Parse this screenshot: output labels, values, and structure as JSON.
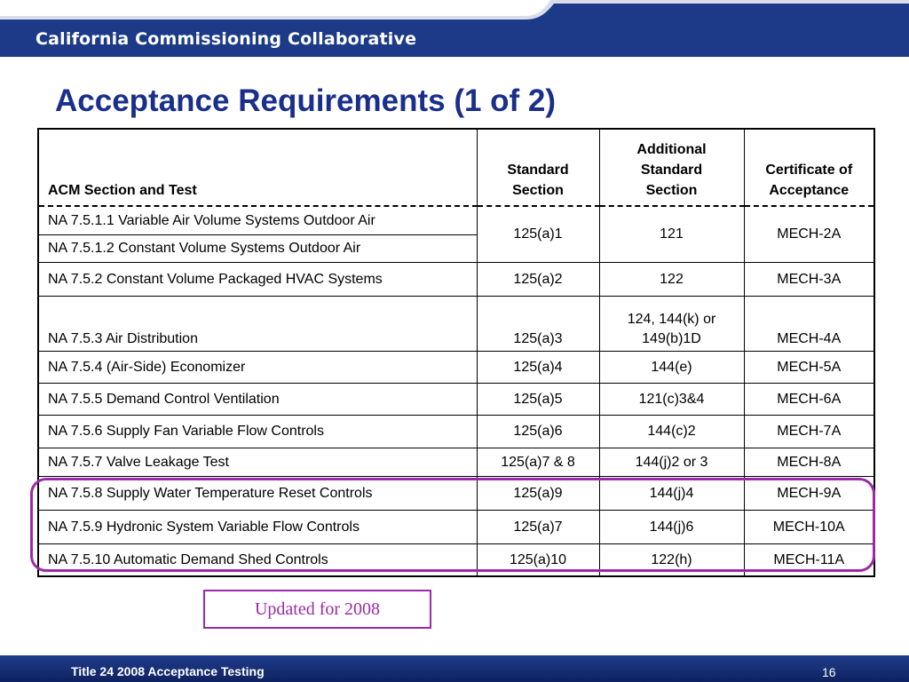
{
  "header": {
    "org_name": "California Commissioning Collaborative",
    "colors": {
      "band": "#1c3a87",
      "stripe": "#d8dde9"
    }
  },
  "title": "Acceptance Requirements (1 of 2)",
  "table": {
    "headers": [
      "ACM Section and Test",
      "Standard\nSection",
      "Additional\nStandard\nSection",
      "Certificate of\nAcceptance"
    ],
    "rows": [
      {
        "test": "NA 7.5.1.1 Variable Air Volume Systems Outdoor Air",
        "standard": "125(a)1",
        "additional": "121",
        "certificate": "MECH-2A"
      },
      {
        "test": "NA 7.5.1.2 Constant Volume Systems Outdoor Air"
      },
      {
        "test": "NA 7.5.2 Constant Volume Packaged HVAC Systems",
        "standard": "125(a)2",
        "additional": "122",
        "certificate": "MECH-3A"
      },
      {
        "test": "NA 7.5.3 Air Distribution",
        "standard": "125(a)3",
        "additional": "124,  144(k) or 149(b)1D",
        "certificate": "MECH-4A"
      },
      {
        "test": "NA 7.5.4 (Air-Side) Economizer",
        "standard": "125(a)4",
        "additional": "144(e)",
        "certificate": "MECH-5A"
      },
      {
        "test": "NA 7.5.5 Demand Control Ventilation",
        "standard": "125(a)5",
        "additional": "121(c)3&4",
        "certificate": "MECH-6A"
      },
      {
        "test": "NA 7.5.6 Supply Fan Variable Flow Controls",
        "standard": "125(a)6",
        "additional": "144(c)2",
        "certificate": "MECH-7A"
      },
      {
        "test": "NA 7.5.7 Valve Leakage Test",
        "standard": "125(a)7 & 8",
        "additional": "144(j)2 or 3",
        "certificate": "MECH-8A"
      },
      {
        "test": "NA 7.5.8 Supply Water Temperature Reset Controls",
        "standard": "125(a)9",
        "additional": "144(j)4",
        "certificate": "MECH-9A"
      },
      {
        "test": "NA 7.5.9 Hydronic System Variable Flow Controls",
        "standard": "125(a)7",
        "additional": "144(j)6",
        "certificate": "MECH-10A"
      },
      {
        "test": "NA 7.5.10 Automatic Demand Shed Controls",
        "standard": "125(a)10",
        "additional": "122(h)",
        "certificate": "MECH-11A"
      }
    ]
  },
  "note": "Updated for 2008",
  "highlight_color": "#9c2aa8",
  "footer": {
    "left_text": "Title 24 2008 Acceptance Testing",
    "page_number": "16"
  }
}
